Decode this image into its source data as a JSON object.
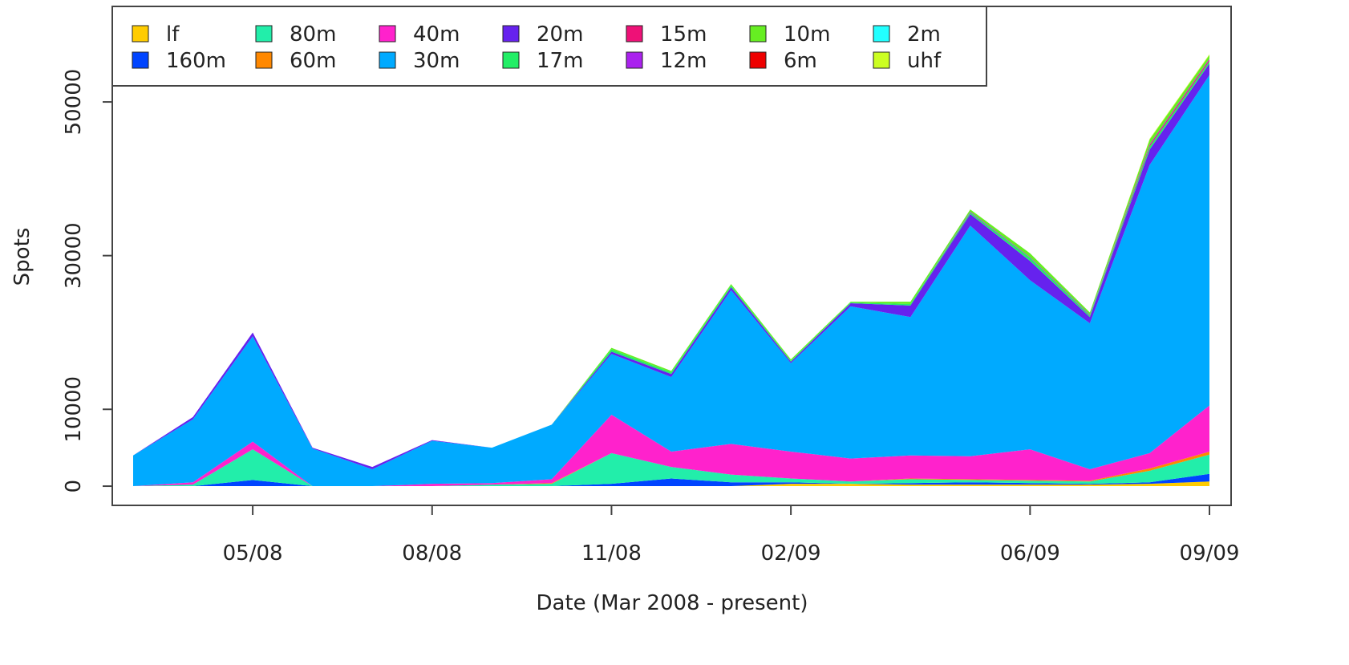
{
  "chart_data": {
    "type": "stacked-area",
    "x_label": "Date (Mar 2008 - present)",
    "y_label": "Spots",
    "x": [
      "03/08",
      "04/08",
      "05/08",
      "06/08",
      "07/08",
      "08/08",
      "09/08",
      "10/08",
      "11/08",
      "12/08",
      "01/09",
      "02/09",
      "03/09",
      "04/09",
      "05/09",
      "06/09",
      "07/09",
      "08/09",
      "09/09"
    ],
    "xticks": [
      "05/08",
      "08/08",
      "11/08",
      "02/09",
      "06/09",
      "09/09"
    ],
    "ylim": [
      -2500,
      62430
    ],
    "yticks": [
      0,
      10000,
      30000,
      50000
    ],
    "legend": "top-left",
    "series": [
      {
        "name": "lf",
        "color": "#ffcc00",
        "values": [
          0,
          0,
          0,
          0,
          0,
          0,
          0,
          0,
          0,
          0,
          0,
          300,
          300,
          200,
          200,
          200,
          200,
          300,
          600
        ]
      },
      {
        "name": "160m",
        "color": "#0044ff",
        "values": [
          0,
          0,
          800,
          0,
          0,
          0,
          0,
          0,
          300,
          1000,
          500,
          200,
          0,
          200,
          300,
          200,
          100,
          200,
          1000
        ]
      },
      {
        "name": "80m",
        "color": "#22eeaa",
        "values": [
          0,
          200,
          4000,
          0,
          0,
          0,
          200,
          300,
          4000,
          1500,
          1000,
          500,
          300,
          500,
          300,
          300,
          300,
          1500,
          2500
        ]
      },
      {
        "name": "60m",
        "color": "#ff8800",
        "values": [
          0,
          0,
          0,
          0,
          0,
          0,
          0,
          100,
          0,
          0,
          0,
          0,
          0,
          100,
          100,
          100,
          100,
          300,
          400
        ]
      },
      {
        "name": "40m",
        "color": "#ff22cc",
        "values": [
          0,
          300,
          1000,
          0,
          0,
          300,
          200,
          500,
          5000,
          2000,
          4000,
          3500,
          3000,
          3000,
          3000,
          4000,
          1500,
          2000,
          6000
        ]
      },
      {
        "name": "30m",
        "color": "#00aaff",
        "values": [
          4000,
          8200,
          13700,
          4900,
          2200,
          5600,
          4600,
          7100,
          7900,
          9700,
          20000,
          11500,
          19800,
          18000,
          30000,
          22000,
          19000,
          37500,
          43000
        ]
      },
      {
        "name": "20m",
        "color": "#6622ee",
        "values": [
          0,
          300,
          500,
          100,
          300,
          100,
          0,
          0,
          300,
          400,
          400,
          200,
          400,
          1500,
          1500,
          2500,
          800,
          2000,
          1500
        ]
      },
      {
        "name": "17m",
        "color": "#22ee66",
        "values": [
          0,
          0,
          0,
          0,
          0,
          0,
          0,
          0,
          300,
          200,
          200,
          100,
          100,
          200,
          200,
          400,
          200,
          400,
          300
        ]
      },
      {
        "name": "15m",
        "color": "#ee1177",
        "values": [
          0,
          0,
          0,
          0,
          0,
          0,
          0,
          0,
          0,
          0,
          0,
          0,
          0,
          0,
          0,
          0,
          0,
          200,
          200
        ]
      },
      {
        "name": "12m",
        "color": "#aa22ee",
        "values": [
          0,
          0,
          0,
          0,
          0,
          0,
          0,
          0,
          0,
          0,
          0,
          0,
          0,
          0,
          100,
          100,
          100,
          100,
          100
        ]
      },
      {
        "name": "10m",
        "color": "#66ee22",
        "values": [
          0,
          0,
          0,
          0,
          0,
          0,
          0,
          0,
          200,
          200,
          200,
          200,
          100,
          300,
          300,
          500,
          300,
          600,
          500
        ]
      },
      {
        "name": "6m",
        "color": "#ee0000",
        "values": [
          0,
          0,
          0,
          0,
          0,
          0,
          0,
          0,
          0,
          0,
          0,
          0,
          0,
          0,
          0,
          0,
          0,
          0,
          0
        ]
      },
      {
        "name": "2m",
        "color": "#22ffff",
        "values": [
          0,
          0,
          0,
          0,
          0,
          0,
          0,
          0,
          0,
          0,
          0,
          0,
          0,
          0,
          0,
          0,
          0,
          0,
          0
        ]
      },
      {
        "name": "uhf",
        "color": "#ccff22",
        "values": [
          0,
          0,
          0,
          0,
          0,
          0,
          0,
          0,
          0,
          0,
          0,
          0,
          0,
          0,
          0,
          0,
          0,
          100,
          100
        ]
      }
    ]
  }
}
